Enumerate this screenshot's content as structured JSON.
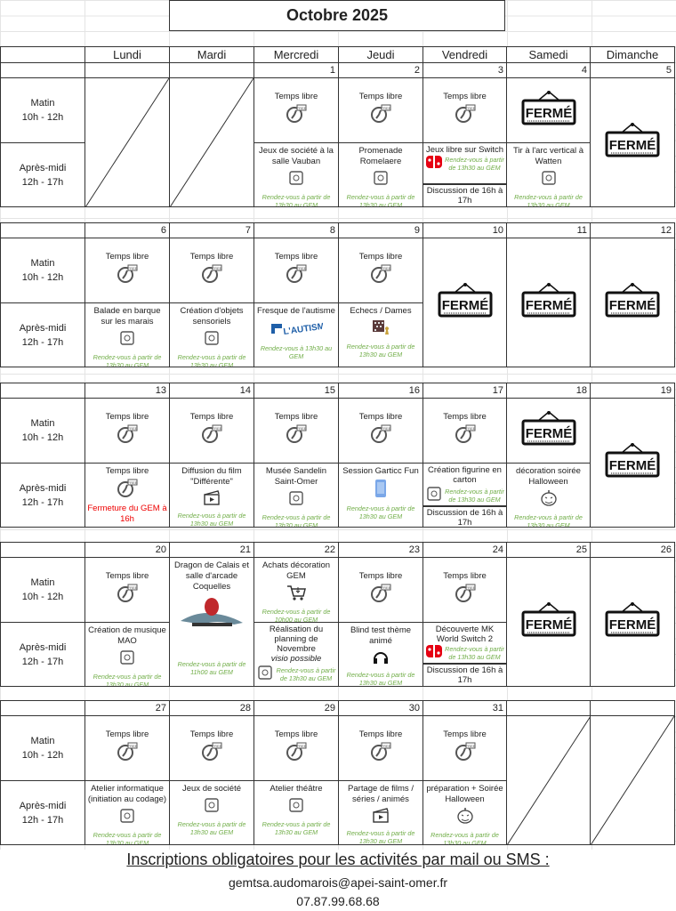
{
  "title": "Octobre 2025",
  "days_header": [
    "Lundi",
    "Mardi",
    "Mercredi",
    "Jeudi",
    "Vendredi",
    "Samedi",
    "Dimanche"
  ],
  "slots": {
    "morning": [
      "Matin",
      "10h - 12h"
    ],
    "afternoon": [
      "Après-midi",
      "12h - 17h"
    ]
  },
  "closed_sign": "FERMÉ",
  "colors": {
    "note": "#70ad47",
    "alert": "#ee0000",
    "border": "#333333"
  },
  "weeks": [
    {
      "days": [
        {
          "date": "",
          "type": "empty"
        },
        {
          "date": "",
          "type": "empty"
        },
        {
          "date": "1",
          "am": {
            "title": "Temps libre",
            "icon": "free-time-clock"
          },
          "pm": {
            "title": "Jeux de société à la salle Vauban",
            "icon": "board-game",
            "note": "Rendez-vous à partir de 13h30 au GEM"
          }
        },
        {
          "date": "2",
          "am": {
            "title": "Temps libre",
            "icon": "free-time-clock"
          },
          "pm": {
            "title": "Promenade Romelaere",
            "icon": "walk-forest",
            "note": "Rendez-vous à partir de 13h30 au GEM"
          }
        },
        {
          "date": "3",
          "am": {
            "title": "Temps libre",
            "icon": "free-time-clock"
          },
          "pm": {
            "title": "Jeux libre sur Switch",
            "icon": "switch-console",
            "note": "Rendez-vous à partir de 13h30 au GEM",
            "extra": "Discussion de 16h à 17h"
          }
        },
        {
          "date": "4",
          "am": {
            "type": "closed"
          },
          "pm": {
            "title": "Tir à l'arc vertical à Watten",
            "icon": "archery",
            "note": "Rendez-vous à partir de 13h30 au GEM"
          }
        },
        {
          "date": "5",
          "type": "closed"
        }
      ]
    },
    {
      "days": [
        {
          "date": "6",
          "am": {
            "title": "Temps libre",
            "icon": "free-time-clock"
          },
          "pm": {
            "title": "Balade en barque sur les marais",
            "icon": "boat",
            "note": "Rendez-vous à partir de 13h30 au GEM"
          }
        },
        {
          "date": "7",
          "am": {
            "title": "Temps libre",
            "icon": "free-time-clock"
          },
          "pm": {
            "title": "Création d'objets sensoriels",
            "icon": "sensory-objects",
            "note": "Rendez-vous à partir de 13h30 au GEM"
          }
        },
        {
          "date": "8",
          "am": {
            "title": "Temps libre",
            "icon": "free-time-clock"
          },
          "pm": {
            "title": "Fresque de l'autisme",
            "icon": "fresque-autisme-logo",
            "logo_text": "L'AUTISME",
            "note": "Rendez-vous à 13h30 au GEM"
          }
        },
        {
          "date": "9",
          "am": {
            "title": "Temps libre",
            "icon": "free-time-clock"
          },
          "pm": {
            "title": "Echecs / Dames",
            "icon": "chess",
            "note": "Rendez-vous à partir de 13h30 au GEM"
          }
        },
        {
          "date": "10",
          "type": "closed"
        },
        {
          "date": "11",
          "type": "closed"
        },
        {
          "date": "12",
          "type": "closed"
        }
      ]
    },
    {
      "days": [
        {
          "date": "13",
          "am": {
            "title": "Temps libre",
            "icon": "free-time-clock"
          },
          "pm": {
            "title": "Temps libre",
            "icon": "free-time-clock",
            "alert": "Fermeture du GEM à 16h"
          }
        },
        {
          "date": "14",
          "am": {
            "title": "Temps libre",
            "icon": "free-time-clock"
          },
          "pm": {
            "title": "Diffusion du film \"Différente\"",
            "icon": "clapperboard",
            "note": "Rendez-vous à partir de 13h30 au GEM"
          }
        },
        {
          "date": "15",
          "am": {
            "title": "Temps libre",
            "icon": "free-time-clock"
          },
          "pm": {
            "title": "Musée Sandelin Saint-Omer",
            "icon": "museum",
            "note": "Rendez-vous à partir de 13h30 au GEM"
          }
        },
        {
          "date": "16",
          "am": {
            "title": "Temps libre",
            "icon": "free-time-clock"
          },
          "pm": {
            "title": "Session Garticc Fun",
            "icon": "phone-game",
            "note": "Rendez-vous à partir de 13h30 au GEM"
          }
        },
        {
          "date": "17",
          "am": {
            "title": "Temps libre",
            "icon": "free-time-clock"
          },
          "pm": {
            "title": "Création figurine en carton",
            "icon": "cardboard-figure",
            "note": "Rendez-vous à partir de 13h30 au GEM",
            "extra": "Discussion de 16h à 17h"
          }
        },
        {
          "date": "18",
          "am": {
            "type": "closed"
          },
          "pm": {
            "title": "décoration soirée Halloween",
            "icon": "pumpkin",
            "note": "Rendez-vous à partir de 13h30 au GEM"
          }
        },
        {
          "date": "19",
          "type": "closed"
        }
      ]
    },
    {
      "days": [
        {
          "date": "20",
          "am": {
            "title": "Temps libre",
            "icon": "free-time-clock"
          },
          "pm": {
            "title": "Création de musique MAO",
            "icon": "computer-music",
            "note": "Rendez-vous à partir de 13h30 au GEM"
          }
        },
        {
          "date": "21",
          "type": "full",
          "full": {
            "title": "Dragon de Calais et salle d'arcade Coquelles",
            "icon": "dragon",
            "note": "Rendez-vous à partir de 11h00 au GEM"
          }
        },
        {
          "date": "22",
          "am": {
            "title": "Achats décoration GEM",
            "icon": "shopping-cart",
            "note": "Rendez-vous à partir de 10h00 au GEM",
            "top": true
          },
          "pm": {
            "title": "Réalisation du planning de Novembre",
            "sub": "visio possible",
            "icon": "calendar-search",
            "note": "Rendez-vous à partir de 13h30 au GEM"
          }
        },
        {
          "date": "23",
          "am": {
            "title": "Temps libre",
            "icon": "free-time-clock"
          },
          "pm": {
            "title": "Blind test thème animé",
            "icon": "headphones",
            "note": "Rendez-vous à partir de 13h30 au GEM"
          }
        },
        {
          "date": "24",
          "am": {
            "title": "Temps libre",
            "icon": "free-time-clock"
          },
          "pm": {
            "title": "Découverte MK World Switch 2",
            "icon": "switch-console",
            "note": "Rendez-vous à partir de 13h30 au GEM",
            "extra": "Discussion de 16h à 17h"
          }
        },
        {
          "date": "25",
          "type": "closed"
        },
        {
          "date": "26",
          "type": "closed"
        }
      ]
    },
    {
      "days": [
        {
          "date": "27",
          "am": {
            "title": "Temps libre",
            "icon": "free-time-clock"
          },
          "pm": {
            "title": "Atelier informatique (initiation au codage)",
            "icon": "computer-coding",
            "note": "Rendez-vous à partir de 13h30 au GEM"
          }
        },
        {
          "date": "28",
          "am": {
            "title": "Temps libre",
            "icon": "free-time-clock"
          },
          "pm": {
            "title": "Jeux de société",
            "icon": "board-game",
            "note": "Rendez-vous à partir de 13h30 au GEM"
          }
        },
        {
          "date": "29",
          "am": {
            "title": "Temps libre",
            "icon": "free-time-clock"
          },
          "pm": {
            "title": "Atelier théâtre",
            "icon": "theatre-masks",
            "note": "Rendez-vous à partir de 13h30 au GEM"
          }
        },
        {
          "date": "30",
          "am": {
            "title": "Temps libre",
            "icon": "free-time-clock"
          },
          "pm": {
            "title": "Partage de films / séries / animés",
            "icon": "clapperboard",
            "note": "Rendez-vous à partir de 13h30 au GEM"
          }
        },
        {
          "date": "31",
          "am": {
            "title": "Temps libre",
            "icon": "free-time-clock"
          },
          "pm": {
            "title": "préparation + Soirée Halloween",
            "icon": "pumpkin",
            "note": "Rendez-vous à partir de 13h30 au GEM"
          }
        },
        {
          "date": "",
          "type": "empty"
        },
        {
          "date": "",
          "type": "empty"
        }
      ]
    }
  ],
  "footer": {
    "notice": "Inscriptions obligatoires pour les activités par mail ou SMS :",
    "email": "gemtsa.audomarois@apei-saint-omer.fr",
    "phone": "07.87.99.68.68"
  }
}
